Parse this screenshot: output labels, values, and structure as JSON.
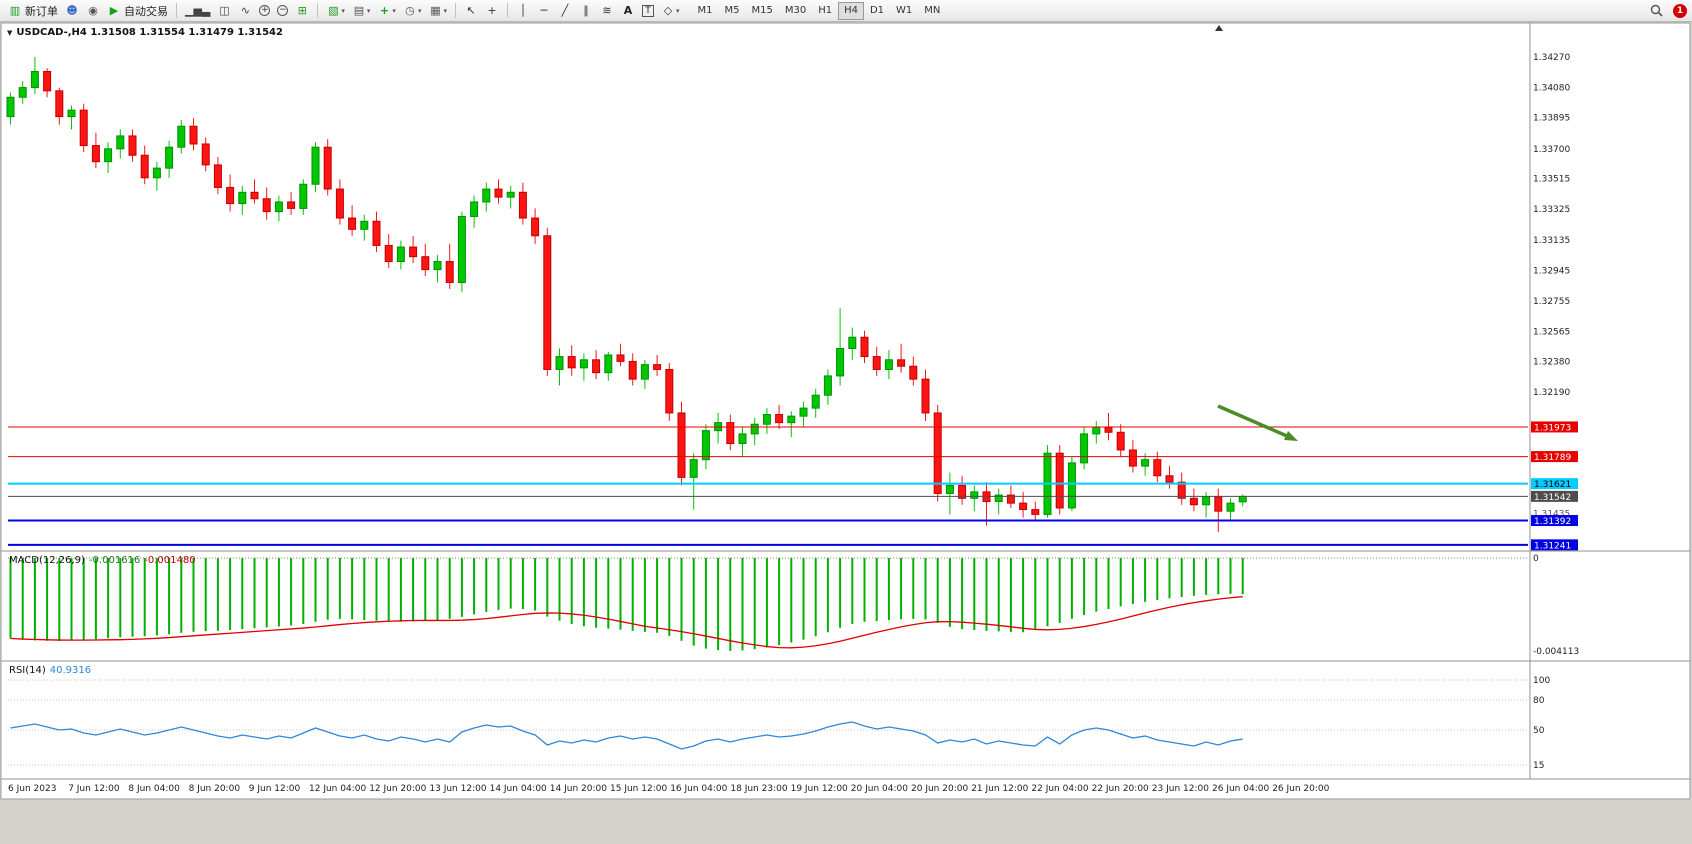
{
  "app": {
    "badge_count": "1"
  },
  "toolbar": {
    "buttons": [
      {
        "name": "new-order-button",
        "icon": "candle-chart-icon",
        "label": "新订单"
      },
      {
        "name": "account-button",
        "icon": "person-icon"
      },
      {
        "name": "community-button",
        "icon": "headset-icon"
      },
      {
        "name": "autotrade-button",
        "icon": "autotrade-play-icon",
        "label": "自动交易"
      },
      {
        "type": "sep"
      },
      {
        "name": "bar-chart-button",
        "icon": "bar-chart-icon"
      },
      {
        "name": "candlestick-chart-button",
        "icon": "candlestick-icon"
      },
      {
        "name": "line-chart-button",
        "icon": "line-chart-icon"
      },
      {
        "name": "zoom-in-button",
        "icon": "zoom-in-icon"
      },
      {
        "name": "zoom-out-button",
        "icon": "zoom-out-icon"
      },
      {
        "name": "tile-windows-button",
        "icon": "tile-windows-icon"
      },
      {
        "type": "sep"
      },
      {
        "name": "new-chart-button",
        "icon": "new-chart-icon",
        "dropdown": true
      },
      {
        "name": "profiles-button",
        "icon": "profiles-icon",
        "dropdown": true
      },
      {
        "name": "indicators-button",
        "icon": "indicators-icon",
        "dropdown": true
      },
      {
        "name": "periods-button",
        "icon": "clock-icon",
        "dropdown": true
      },
      {
        "name": "templates-button",
        "icon": "template-icon",
        "dropdown": true
      },
      {
        "type": "sep"
      },
      {
        "name": "cursor-button",
        "icon": "cursor-icon"
      },
      {
        "name": "crosshair-button",
        "icon": "crosshair-icon"
      },
      {
        "type": "sep"
      },
      {
        "name": "vertical-line-button",
        "icon": "vertical-line-icon"
      },
      {
        "name": "horizontal-line-button",
        "icon": "horizontal-line-icon"
      },
      {
        "name": "trendline-button",
        "icon": "trendline-icon"
      },
      {
        "name": "channel-button",
        "icon": "channel-icon"
      },
      {
        "name": "fibonacci-button",
        "icon": "fibonacci-icon"
      },
      {
        "name": "text-tool-button",
        "icon": "text-A-icon"
      },
      {
        "name": "text-label-button",
        "icon": "text-label-icon"
      },
      {
        "name": "shapes-button",
        "icon": "shapes-icon",
        "dropdown": true
      }
    ],
    "timeframes": {
      "items": [
        "M1",
        "M5",
        "M15",
        "M30",
        "H1",
        "H4",
        "D1",
        "W1",
        "MN"
      ],
      "active": "H4"
    }
  },
  "chart_data": {
    "type": "candlestick",
    "symbol": "USDCAD-",
    "period": "H4",
    "title": "USDCAD-,H4 1.31508 1.31554 1.31479 1.31542",
    "open": "1.31508",
    "high": "1.31554",
    "low": "1.31479",
    "close": "1.31542",
    "colors": {
      "up": "#00C800",
      "up_edge": "#009000",
      "down": "#FF1414",
      "down_edge": "#C00000",
      "bg": "#FFFFFF"
    },
    "y_labels": [
      "1.34270",
      "1.34080",
      "1.33895",
      "1.33700",
      "1.33515",
      "1.33325",
      "1.33135",
      "1.32945",
      "1.32755",
      "1.32565",
      "1.32380",
      "1.32190"
    ],
    "y_minor_label": "1.31435",
    "y_minor_value": 1.31435,
    "hlines": [
      {
        "price": 1.31973,
        "label": "1.31973",
        "color": "#E60000",
        "text": "#FFFFFF",
        "lw": 1
      },
      {
        "price": 1.31789,
        "label": "1.31789",
        "color": "#E60000",
        "text": "#FFFFFF",
        "lw": 1
      },
      {
        "price": 1.31621,
        "label": "1.31621",
        "color": "#00CCFF",
        "text": "#000000",
        "lw": 2
      },
      {
        "price": 1.31542,
        "label": "1.31542",
        "color": "#4d4d4d",
        "text": "#FFFFFF",
        "lw": 1,
        "current": true
      },
      {
        "price": 1.31392,
        "label": "1.31392",
        "color": "#0000E0",
        "text": "#FFFFFF",
        "lw": 2
      },
      {
        "price": 1.31241,
        "label": "1.31241",
        "color": "#0000E0",
        "text": "#FFFFFF",
        "lw": 2
      }
    ],
    "x_labels": [
      "6 Jun 2023",
      "7 Jun 12:00",
      "8 Jun 04:00",
      "8 Jun 20:00",
      "9 Jun 12:00",
      "12 Jun 04:00",
      "12 Jun 20:00",
      "13 Jun 12:00",
      "14 Jun 04:00",
      "14 Jun 20:00",
      "15 Jun 12:00",
      "16 Jun 04:00",
      "18 Jun 23:00",
      "19 Jun 12:00",
      "20 Jun 04:00",
      "20 Jun 20:00",
      "21 Jun 12:00",
      "22 Jun 04:00",
      "22 Jun 20:00",
      "23 Jun 12:00",
      "26 Jun 04:00",
      "26 Jun 20:00"
    ],
    "candles": [
      [
        1.339,
        1.3405,
        1.3385,
        1.3402
      ],
      [
        1.3402,
        1.3412,
        1.3398,
        1.3408
      ],
      [
        1.3408,
        1.3427,
        1.3404,
        1.3418
      ],
      [
        1.3418,
        1.342,
        1.3402,
        1.3406
      ],
      [
        1.3406,
        1.3408,
        1.3385,
        1.339
      ],
      [
        1.339,
        1.3397,
        1.3382,
        1.3394
      ],
      [
        1.3394,
        1.3398,
        1.3368,
        1.3372
      ],
      [
        1.3372,
        1.338,
        1.3358,
        1.3362
      ],
      [
        1.3362,
        1.3374,
        1.3355,
        1.337
      ],
      [
        1.337,
        1.3382,
        1.3364,
        1.3378
      ],
      [
        1.3378,
        1.3382,
        1.3362,
        1.3366
      ],
      [
        1.3366,
        1.3372,
        1.3348,
        1.3352
      ],
      [
        1.3352,
        1.3362,
        1.3344,
        1.3358
      ],
      [
        1.3358,
        1.3375,
        1.3352,
        1.3371
      ],
      [
        1.3371,
        1.3388,
        1.3367,
        1.3384
      ],
      [
        1.3384,
        1.3389,
        1.3369,
        1.3373
      ],
      [
        1.3373,
        1.3377,
        1.3356,
        1.336
      ],
      [
        1.336,
        1.3365,
        1.3342,
        1.3346
      ],
      [
        1.3346,
        1.3354,
        1.3331,
        1.3336
      ],
      [
        1.3336,
        1.3347,
        1.3329,
        1.3343
      ],
      [
        1.3343,
        1.3351,
        1.3336,
        1.3339
      ],
      [
        1.3339,
        1.3346,
        1.3326,
        1.3331
      ],
      [
        1.3331,
        1.3341,
        1.3325,
        1.3337
      ],
      [
        1.3337,
        1.3343,
        1.3329,
        1.3333
      ],
      [
        1.3333,
        1.3351,
        1.3329,
        1.3348
      ],
      [
        1.3348,
        1.3374,
        1.3343,
        1.3371
      ],
      [
        1.3371,
        1.3376,
        1.3341,
        1.3345
      ],
      [
        1.3345,
        1.3351,
        1.3323,
        1.3327
      ],
      [
        1.3327,
        1.3335,
        1.3316,
        1.332
      ],
      [
        1.332,
        1.3329,
        1.3313,
        1.3325
      ],
      [
        1.3325,
        1.3331,
        1.3306,
        1.331
      ],
      [
        1.331,
        1.3317,
        1.3296,
        1.33
      ],
      [
        1.33,
        1.3313,
        1.3295,
        1.3309
      ],
      [
        1.3309,
        1.3316,
        1.3299,
        1.3303
      ],
      [
        1.3303,
        1.3311,
        1.3291,
        1.3295
      ],
      [
        1.3295,
        1.3304,
        1.3287,
        1.33
      ],
      [
        1.33,
        1.3311,
        1.3283,
        1.3287
      ],
      [
        1.3287,
        1.3331,
        1.3281,
        1.3328
      ],
      [
        1.3328,
        1.3341,
        1.3321,
        1.3337
      ],
      [
        1.3337,
        1.3349,
        1.3331,
        1.3345
      ],
      [
        1.3345,
        1.3351,
        1.3336,
        1.334
      ],
      [
        1.334,
        1.3347,
        1.3333,
        1.3343
      ],
      [
        1.3343,
        1.3349,
        1.3323,
        1.3327
      ],
      [
        1.3327,
        1.3333,
        1.3311,
        1.3316
      ],
      [
        1.3316,
        1.3321,
        1.3229,
        1.3233
      ],
      [
        1.3233,
        1.3246,
        1.3223,
        1.3241
      ],
      [
        1.3241,
        1.3248,
        1.3229,
        1.3234
      ],
      [
        1.3234,
        1.3243,
        1.3226,
        1.3239
      ],
      [
        1.3239,
        1.3245,
        1.3227,
        1.3231
      ],
      [
        1.3231,
        1.3244,
        1.3226,
        1.3242
      ],
      [
        1.3242,
        1.3249,
        1.3235,
        1.3238
      ],
      [
        1.3238,
        1.3243,
        1.3223,
        1.3227
      ],
      [
        1.3227,
        1.3239,
        1.3221,
        1.3236
      ],
      [
        1.3236,
        1.3242,
        1.3229,
        1.3233
      ],
      [
        1.3233,
        1.3237,
        1.3201,
        1.3206
      ],
      [
        1.3206,
        1.3213,
        1.3161,
        1.3166
      ],
      [
        1.3166,
        1.3181,
        1.3146,
        1.3177
      ],
      [
        1.3177,
        1.3199,
        1.3171,
        1.3195
      ],
      [
        1.3195,
        1.3206,
        1.3187,
        1.32
      ],
      [
        1.32,
        1.3205,
        1.3183,
        1.3187
      ],
      [
        1.3187,
        1.3197,
        1.3179,
        1.3193
      ],
      [
        1.3193,
        1.3203,
        1.3186,
        1.3199
      ],
      [
        1.3199,
        1.3209,
        1.3193,
        1.3205
      ],
      [
        1.3205,
        1.3211,
        1.3196,
        1.32
      ],
      [
        1.32,
        1.3207,
        1.3191,
        1.3204
      ],
      [
        1.3204,
        1.3213,
        1.3197,
        1.3209
      ],
      [
        1.3209,
        1.3221,
        1.3203,
        1.3217
      ],
      [
        1.3217,
        1.3233,
        1.3211,
        1.3229
      ],
      [
        1.3229,
        1.3271,
        1.3223,
        1.3246
      ],
      [
        1.3246,
        1.3259,
        1.3239,
        1.3253
      ],
      [
        1.3253,
        1.3257,
        1.3237,
        1.3241
      ],
      [
        1.3241,
        1.3247,
        1.3229,
        1.3233
      ],
      [
        1.3233,
        1.3245,
        1.3227,
        1.3239
      ],
      [
        1.3239,
        1.3249,
        1.3231,
        1.3235
      ],
      [
        1.3235,
        1.3241,
        1.3223,
        1.3227
      ],
      [
        1.3227,
        1.3233,
        1.3201,
        1.3206
      ],
      [
        1.3206,
        1.3211,
        1.3151,
        1.3156
      ],
      [
        1.3156,
        1.3169,
        1.3143,
        1.3161
      ],
      [
        1.3161,
        1.3167,
        1.3149,
        1.3153
      ],
      [
        1.3153,
        1.3161,
        1.3145,
        1.3157
      ],
      [
        1.3157,
        1.3163,
        1.3136,
        1.3151
      ],
      [
        1.3151,
        1.3159,
        1.3143,
        1.3155
      ],
      [
        1.3155,
        1.3161,
        1.3147,
        1.315
      ],
      [
        1.315,
        1.3157,
        1.3141,
        1.3146
      ],
      [
        1.3146,
        1.3151,
        1.3139,
        1.3143
      ],
      [
        1.3143,
        1.3186,
        1.3141,
        1.3181
      ],
      [
        1.3181,
        1.3186,
        1.3143,
        1.3147
      ],
      [
        1.3147,
        1.3179,
        1.3145,
        1.3175
      ],
      [
        1.3175,
        1.3197,
        1.3171,
        1.3193
      ],
      [
        1.3193,
        1.3201,
        1.3187,
        1.3197
      ],
      [
        1.3197,
        1.3206,
        1.3189,
        1.3194
      ],
      [
        1.3194,
        1.3199,
        1.3179,
        1.3183
      ],
      [
        1.3183,
        1.3189,
        1.3169,
        1.3173
      ],
      [
        1.3173,
        1.3181,
        1.3167,
        1.3177
      ],
      [
        1.3177,
        1.3182,
        1.3163,
        1.3167
      ],
      [
        1.3167,
        1.3173,
        1.3159,
        1.3163
      ],
      [
        1.3163,
        1.3169,
        1.3149,
        1.3153
      ],
      [
        1.3153,
        1.3159,
        1.3145,
        1.3149
      ],
      [
        1.3149,
        1.3157,
        1.3141,
        1.3154
      ],
      [
        1.3154,
        1.3159,
        1.3132,
        1.3145
      ],
      [
        1.3145,
        1.3153,
        1.3139,
        1.315
      ],
      [
        1.31508,
        1.31554,
        1.31479,
        1.31542
      ]
    ],
    "macd": {
      "label": "MACD(12,26,9)",
      "value_text": "-0.001616",
      "signal_text": "-0.001480",
      "scale_top": "0",
      "scale_bottom": "-0.004113",
      "histogram_color": "#00B000",
      "signal_color": "#E00000",
      "histogram": [
        -0.0036,
        -0.00365,
        -0.00368,
        -0.0037,
        -0.00371,
        -0.00369,
        -0.00366,
        -0.00363,
        -0.00359,
        -0.00355,
        -0.00352,
        -0.0035,
        -0.00346,
        -0.00341,
        -0.00335,
        -0.0033,
        -0.00327,
        -0.00325,
        -0.00322,
        -0.00318,
        -0.00314,
        -0.0031,
        -0.00306,
        -0.00302,
        -0.00295,
        -0.00285,
        -0.00276,
        -0.00272,
        -0.00274,
        -0.00277,
        -0.0028,
        -0.00283,
        -0.00285,
        -0.00284,
        -0.00281,
        -0.00277,
        -0.00272,
        -0.00263,
        -0.00252,
        -0.00241,
        -0.00232,
        -0.00226,
        -0.00228,
        -0.00235,
        -0.00262,
        -0.0028,
        -0.00295,
        -0.00305,
        -0.00312,
        -0.00316,
        -0.0032,
        -0.00326,
        -0.0033,
        -0.00334,
        -0.00348,
        -0.0037,
        -0.00392,
        -0.00405,
        -0.00412,
        -0.00415,
        -0.00413,
        -0.00408,
        -0.004,
        -0.0039,
        -0.00378,
        -0.00365,
        -0.0035,
        -0.00332,
        -0.00312,
        -0.00295,
        -0.00285,
        -0.00282,
        -0.00278,
        -0.00274,
        -0.00272,
        -0.00275,
        -0.0029,
        -0.00308,
        -0.00318,
        -0.00322,
        -0.00326,
        -0.00328,
        -0.0033,
        -0.00332,
        -0.0032,
        -0.00305,
        -0.0029,
        -0.00272,
        -0.00255,
        -0.0024,
        -0.00228,
        -0.00216,
        -0.00206,
        -0.00196,
        -0.00188,
        -0.0018,
        -0.00174,
        -0.00169,
        -0.00165,
        -0.00162,
        -0.0016,
        -0.00162
      ]
    },
    "rsi": {
      "label": "RSI(14)",
      "value_text": "40.9316",
      "line_color": "#2E86D9",
      "levels": [
        100,
        80,
        50,
        15
      ],
      "series": [
        52,
        54,
        56,
        53,
        50,
        51,
        47,
        45,
        48,
        51,
        48,
        45,
        47,
        50,
        53,
        50,
        47,
        44,
        42,
        45,
        43,
        41,
        44,
        42,
        47,
        52,
        48,
        44,
        42,
        45,
        41,
        39,
        43,
        41,
        38,
        41,
        38,
        48,
        52,
        55,
        53,
        54,
        49,
        45,
        35,
        39,
        37,
        40,
        38,
        42,
        44,
        41,
        43,
        41,
        36,
        31,
        34,
        39,
        41,
        38,
        41,
        43,
        45,
        43,
        44,
        46,
        49,
        53,
        56,
        58,
        54,
        51,
        53,
        51,
        49,
        45,
        37,
        40,
        38,
        41,
        36,
        39,
        37,
        35,
        34,
        43,
        36,
        45,
        50,
        52,
        50,
        46,
        42,
        44,
        40,
        38,
        36,
        34,
        38,
        35,
        39,
        40.93
      ]
    },
    "annotation_arrow": {
      "color": "#4a8c2a"
    }
  }
}
